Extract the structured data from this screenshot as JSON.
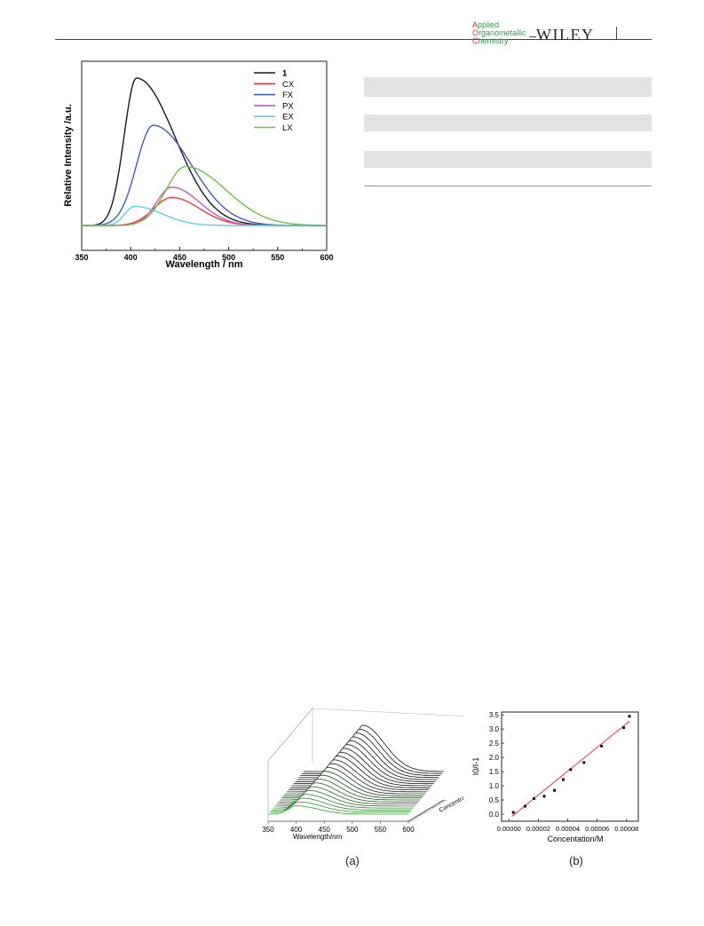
{
  "header": {
    "journal_line1": "Applied",
    "journal_line2": "Organometallic",
    "journal_line3": "Chemistry",
    "publisher": "WILEY"
  },
  "chart_data": [
    {
      "type": "line",
      "title": "",
      "xlabel": "Wavelength / nm",
      "ylabel": "Relative Intensity /a.u.",
      "xlim": [
        350,
        600
      ],
      "xticks": [
        "350",
        "400",
        "450",
        "500",
        "550",
        "600"
      ],
      "ylim": [
        0,
        1.05
      ],
      "yticks_shown": false,
      "legend_position": "top-right",
      "series": [
        {
          "name": "1",
          "color": "#1a1a1a",
          "peak_x": 406,
          "peak_y": 1.0,
          "width_left": 18,
          "width_right": 55
        },
        {
          "name": "CX",
          "color": "#e8383d",
          "peak_x": 442,
          "peak_y": 0.19,
          "width_left": 26,
          "width_right": 40
        },
        {
          "name": "FX",
          "color": "#3f5fb5",
          "peak_x": 423,
          "peak_y": 0.68,
          "width_left": 24,
          "width_right": 55
        },
        {
          "name": "PX",
          "color": "#c45bb5",
          "peak_x": 442,
          "peak_y": 0.26,
          "width_left": 22,
          "width_right": 40
        },
        {
          "name": "EX",
          "color": "#5ad0e6",
          "peak_x": 404,
          "peak_y": 0.13,
          "width_left": 14,
          "width_right": 40
        },
        {
          "name": "LX",
          "color": "#6dbf45",
          "peak_x": 456,
          "peak_y": 0.4,
          "width_left": 28,
          "width_right": 58
        }
      ]
    },
    {
      "type": "line",
      "subtype": "3d-waterfall",
      "xlabel": "Wavelength/nm",
      "xlim": [
        350,
        600
      ],
      "xticks": [
        "350",
        "400",
        "450",
        "500",
        "550",
        "600"
      ],
      "depth_label": "Concentration/M",
      "num_traces": 22,
      "peak_x_range": [
        400,
        455
      ],
      "peak_height_range": [
        0.18,
        1.0
      ],
      "color_front": "#2f9e2f",
      "color_back": "#111111",
      "caption": "(a)"
    },
    {
      "type": "scatter",
      "xlabel": "Concentation/M",
      "ylabel": "I0/I-1",
      "xlim": [
        -5e-06,
        8.8e-05
      ],
      "ylim": [
        -0.25,
        3.6
      ],
      "xticks": [
        "0.00000",
        "0.00002",
        "0.00004",
        "0.00006",
        "0.00008"
      ],
      "yticks": [
        "0.0",
        "0.5",
        "1.0",
        "1.5",
        "2.0",
        "2.5",
        "3.0",
        "3.5"
      ],
      "points": [
        {
          "x": 3e-06,
          "y": 0.06
        },
        {
          "x": 1.1e-05,
          "y": 0.28
        },
        {
          "x": 1.7e-05,
          "y": 0.55
        },
        {
          "x": 2.4e-05,
          "y": 0.63
        },
        {
          "x": 3.1e-05,
          "y": 0.84
        },
        {
          "x": 3.7e-05,
          "y": 1.22
        },
        {
          "x": 4.2e-05,
          "y": 1.57
        },
        {
          "x": 5.1e-05,
          "y": 1.82
        },
        {
          "x": 6.3e-05,
          "y": 2.4
        },
        {
          "x": 7.8e-05,
          "y": 3.05
        },
        {
          "x": 8.2e-05,
          "y": 3.45
        }
      ],
      "fit_line": {
        "color": "#e8383d",
        "x": [
          2e-06,
          8.2e-05
        ],
        "y": [
          -0.08,
          3.28
        ]
      },
      "caption": "(b)"
    }
  ]
}
